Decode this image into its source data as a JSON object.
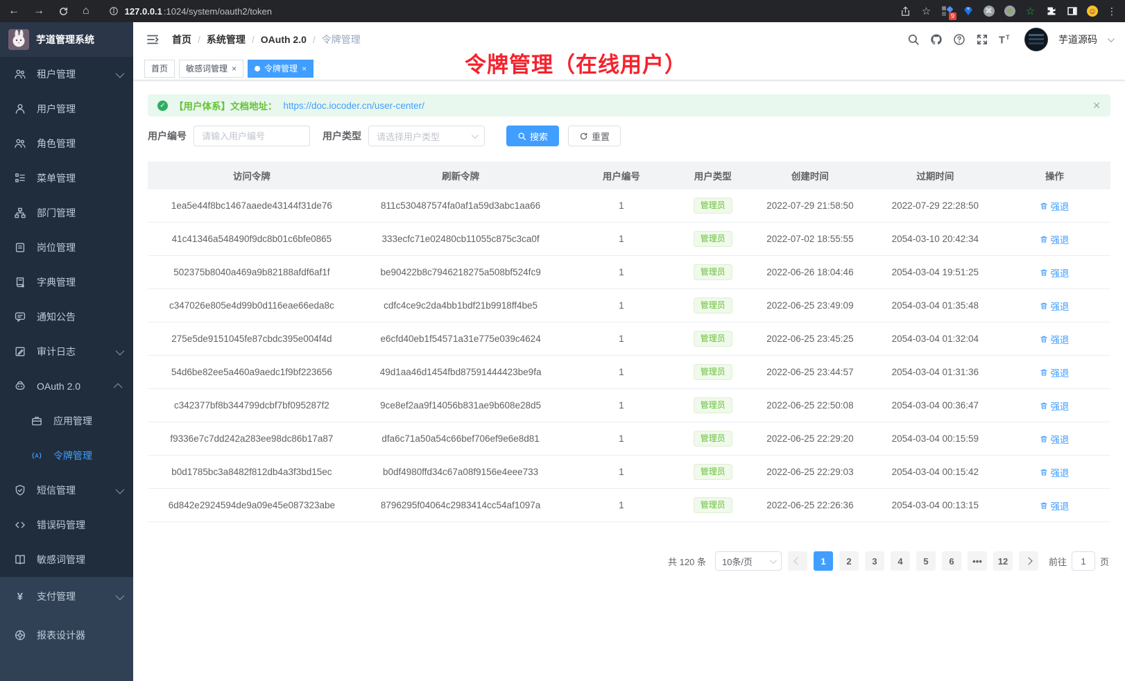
{
  "browser": {
    "url_host": "127.0.0.1",
    "url_path": ":1024/system/oauth2/token",
    "extensions_badge": "9"
  },
  "colors": {
    "accent": "#409eff",
    "success": "#67c23a",
    "annotation_red": "#f5222d"
  },
  "sidebar": {
    "app_title": "芋道管理系统",
    "items": [
      {
        "label": "租户管理",
        "icon": "tenant-icon",
        "chevron": "down",
        "section": "submenu"
      },
      {
        "label": "用户管理",
        "icon": "user-icon",
        "section": "submenu"
      },
      {
        "label": "角色管理",
        "icon": "role-icon",
        "section": "submenu"
      },
      {
        "label": "菜单管理",
        "icon": "menu-tree-icon",
        "section": "submenu"
      },
      {
        "label": "部门管理",
        "icon": "dept-icon",
        "section": "submenu"
      },
      {
        "label": "岗位管理",
        "icon": "post-icon",
        "section": "submenu"
      },
      {
        "label": "字典管理",
        "icon": "dict-icon",
        "section": "submenu"
      },
      {
        "label": "通知公告",
        "icon": "notice-icon",
        "section": "submenu"
      },
      {
        "label": "审计日志",
        "icon": "audit-icon",
        "chevron": "down",
        "section": "submenu"
      },
      {
        "label": "OAuth 2.0",
        "icon": "oauth-icon",
        "chevron": "up",
        "section": "submenu"
      },
      {
        "label": "应用管理",
        "icon": "app-icon",
        "child": true,
        "section": "submenu"
      },
      {
        "label": "令牌管理",
        "icon": "token-icon",
        "child": true,
        "active": true,
        "section": "submenu"
      },
      {
        "label": "短信管理",
        "icon": "sms-icon",
        "chevron": "down",
        "section": "submenu"
      },
      {
        "label": "错误码管理",
        "icon": "errcode-icon",
        "section": "submenu"
      },
      {
        "label": "敏感词管理",
        "icon": "sensitive-icon",
        "section": "submenu"
      },
      {
        "label": "支付管理",
        "icon": "pay-icon",
        "chevron": "down",
        "section": "root"
      },
      {
        "label": "报表设计器",
        "icon": "report-icon",
        "section": "root"
      }
    ]
  },
  "navbar": {
    "breadcrumb": [
      "首页",
      "系统管理",
      "OAuth 2.0",
      "令牌管理"
    ],
    "user_name": "芋道源码"
  },
  "tabs": [
    {
      "label": "首页",
      "active": false,
      "closable": false
    },
    {
      "label": "敏感词管理",
      "active": false,
      "closable": true
    },
    {
      "label": "令牌管理",
      "active": true,
      "closable": true
    }
  ],
  "annotation": {
    "text": "令牌管理（在线用户）"
  },
  "alert": {
    "text": "【用户体系】文档地址：",
    "link": "https://doc.iocoder.cn/user-center/"
  },
  "filters": {
    "user_id_label": "用户编号",
    "user_id_placeholder": "请输入用户编号",
    "user_type_label": "用户类型",
    "user_type_placeholder": "请选择用户类型",
    "search_label": "搜索",
    "reset_label": "重置"
  },
  "table": {
    "columns": [
      "访问令牌",
      "刷新令牌",
      "用户编号",
      "用户类型",
      "创建时间",
      "过期时间",
      "操作"
    ],
    "action_label": "强退",
    "rows": [
      {
        "access_token": "1ea5e44f8bc1467aaede43144f31de76",
        "refresh_token": "811c530487574fa0af1a59d3abc1aa66",
        "user_id": "1",
        "user_type": "管理员",
        "create_time": "2022-07-29 21:58:50",
        "expire_time": "2022-07-29 22:28:50"
      },
      {
        "access_token": "41c41346a548490f9dc8b01c6bfe0865",
        "refresh_token": "333ecfc71e02480cb11055c875c3ca0f",
        "user_id": "1",
        "user_type": "管理员",
        "create_time": "2022-07-02 18:55:55",
        "expire_time": "2054-03-10 20:42:34"
      },
      {
        "access_token": "502375b8040a469a9b82188afdf6af1f",
        "refresh_token": "be90422b8c7946218275a508bf524fc9",
        "user_id": "1",
        "user_type": "管理员",
        "create_time": "2022-06-26 18:04:46",
        "expire_time": "2054-03-04 19:51:25"
      },
      {
        "access_token": "c347026e805e4d99b0d116eae66eda8c",
        "refresh_token": "cdfc4ce9c2da4bb1bdf21b9918ff4be5",
        "user_id": "1",
        "user_type": "管理员",
        "create_time": "2022-06-25 23:49:09",
        "expire_time": "2054-03-04 01:35:48"
      },
      {
        "access_token": "275e5de9151045fe87cbdc395e004f4d",
        "refresh_token": "e6cfd40eb1f54571a31e775e039c4624",
        "user_id": "1",
        "user_type": "管理员",
        "create_time": "2022-06-25 23:45:25",
        "expire_time": "2054-03-04 01:32:04"
      },
      {
        "access_token": "54d6be82ee5a460a9aedc1f9bf223656",
        "refresh_token": "49d1aa46d1454fbd87591444423be9fa",
        "user_id": "1",
        "user_type": "管理员",
        "create_time": "2022-06-25 23:44:57",
        "expire_time": "2054-03-04 01:31:36"
      },
      {
        "access_token": "c342377bf8b344799dcbf7bf095287f2",
        "refresh_token": "9ce8ef2aa9f14056b831ae9b608e28d5",
        "user_id": "1",
        "user_type": "管理员",
        "create_time": "2022-06-25 22:50:08",
        "expire_time": "2054-03-04 00:36:47"
      },
      {
        "access_token": "f9336e7c7dd242a283ee98dc86b17a87",
        "refresh_token": "dfa6c71a50a54c66bef706ef9e6e8d81",
        "user_id": "1",
        "user_type": "管理员",
        "create_time": "2022-06-25 22:29:20",
        "expire_time": "2054-03-04 00:15:59"
      },
      {
        "access_token": "b0d1785bc3a8482f812db4a3f3bd15ec",
        "refresh_token": "b0df4980ffd34c67a08f9156e4eee733",
        "user_id": "1",
        "user_type": "管理员",
        "create_time": "2022-06-25 22:29:03",
        "expire_time": "2054-03-04 00:15:42"
      },
      {
        "access_token": "6d842e2924594de9a09e45e087323abe",
        "refresh_token": "8796295f04064c2983414cc54af1097a",
        "user_id": "1",
        "user_type": "管理员",
        "create_time": "2022-06-25 22:26:36",
        "expire_time": "2054-03-04 00:13:15"
      }
    ]
  },
  "pagination": {
    "total_text": "共 120 条",
    "page_size": "10条/页",
    "pages": [
      "1",
      "2",
      "3",
      "4",
      "5",
      "6",
      "•••",
      "12"
    ],
    "active_page": "1",
    "goto_label": "前往",
    "goto_value": "1",
    "unit_label": "页"
  }
}
